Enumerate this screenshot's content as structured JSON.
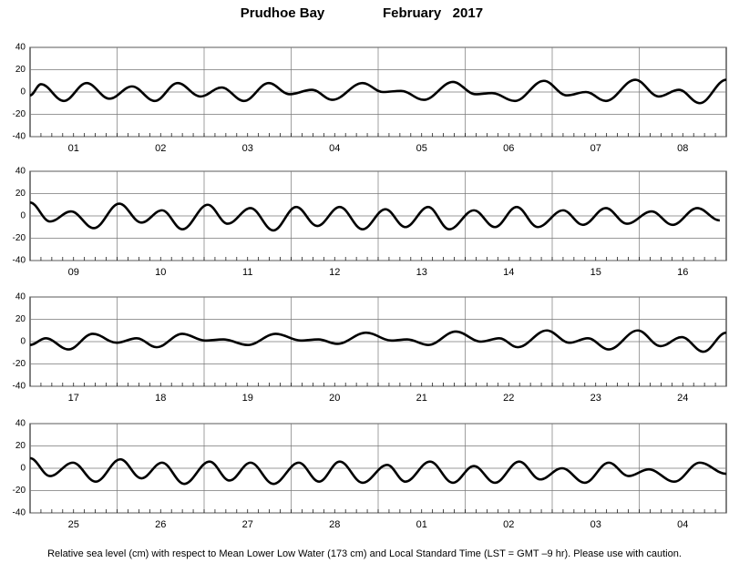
{
  "header": {
    "station": "Prudhoe Bay",
    "month_year": "February   2017"
  },
  "footer": "Relative sea level (cm) with respect to Mean Lower Low Water (173 cm) and Local Standard Time (LST = GMT –9 hr). Please use with caution.",
  "chart_data": [
    {
      "type": "line",
      "categories": [
        "01",
        "02",
        "03",
        "04",
        "05",
        "06",
        "07",
        "08"
      ],
      "xlim": [
        0,
        192
      ],
      "ylim": [
        -40,
        40
      ],
      "yticks": [
        -40,
        -20,
        0,
        20,
        40
      ],
      "grid": true,
      "color": "#000000",
      "x": [
        0,
        3,
        9.3,
        15.6,
        21.9,
        28.1,
        34.4,
        40.7,
        47,
        52.8,
        59,
        65.8,
        71.6,
        77.7,
        83.4,
        91.7,
        97.3,
        102.3,
        108.6,
        116.6,
        122.9,
        127.4,
        133.7,
        141.7,
        148,
        153.3,
        158.8,
        166.9,
        173.4,
        178.9,
        184.7,
        192
      ],
      "values": [
        -3,
        7,
        -8,
        8,
        -6,
        5,
        -8,
        8,
        -4,
        4,
        -8,
        8,
        -2,
        2,
        -7,
        8,
        0,
        1,
        -7,
        9,
        -2,
        -1,
        -8,
        10,
        -3,
        0,
        -8,
        11,
        -4,
        2,
        -10,
        11
      ]
    },
    {
      "type": "line",
      "categories": [
        "09",
        "10",
        "11",
        "12",
        "13",
        "14",
        "15",
        "16"
      ],
      "xlim": [
        0,
        192
      ],
      "ylim": [
        -40,
        40
      ],
      "yticks": [
        -40,
        -20,
        0,
        20,
        40
      ],
      "grid": true,
      "color": "#000000",
      "x": [
        0,
        5.5,
        11.3,
        17.6,
        24.6,
        30.7,
        36.4,
        42,
        49,
        54.5,
        60.8,
        67.1,
        73.4,
        79.2,
        85.4,
        91.7,
        98,
        103.5,
        109.8,
        115.6,
        122.4,
        128.2,
        134.2,
        140,
        147,
        152.5,
        158.8,
        164.6,
        171.4,
        177.2,
        184,
        190.2
      ],
      "values": [
        12,
        -5,
        4,
        -11,
        11,
        -6,
        5,
        -12,
        10,
        -7,
        7,
        -13,
        8,
        -9,
        8,
        -12,
        6,
        -10,
        8,
        -12,
        5,
        -10,
        8,
        -10,
        5,
        -8,
        7,
        -7,
        4,
        -8,
        7,
        -4
      ]
    },
    {
      "type": "line",
      "categories": [
        "17",
        "18",
        "19",
        "20",
        "21",
        "22",
        "23",
        "24"
      ],
      "xlim": [
        0,
        192
      ],
      "ylim": [
        -40,
        40
      ],
      "yticks": [
        -40,
        -20,
        0,
        20,
        40
      ],
      "grid": true,
      "color": "#000000",
      "x": [
        0,
        4.3,
        10.6,
        17.3,
        23.9,
        29.4,
        34.9,
        42,
        48.2,
        53.3,
        60,
        67.8,
        74.6,
        79.5,
        84.7,
        92.7,
        99.7,
        104,
        109.8,
        117.4,
        124.4,
        129.4,
        134.5,
        142.5,
        148.8,
        153.8,
        159.6,
        167.6,
        173.9,
        179.7,
        185.7,
        192
      ],
      "values": [
        -3,
        3,
        -7,
        7,
        -1,
        3,
        -5,
        7,
        1,
        2,
        -3,
        7,
        1,
        2,
        -2,
        8,
        1,
        2,
        -3,
        9,
        0,
        3,
        -5,
        10,
        -1,
        3,
        -7,
        10,
        -4,
        4,
        -9,
        8
      ]
    },
    {
      "type": "line",
      "categories": [
        "25",
        "26",
        "27",
        "28",
        "01",
        "02",
        "03",
        "04"
      ],
      "xlim": [
        0,
        192
      ],
      "ylim": [
        -40,
        40
      ],
      "yticks": [
        -40,
        -20,
        0,
        20,
        40
      ],
      "grid": true,
      "color": "#000000",
      "x": [
        0,
        5.5,
        11.8,
        18.1,
        24.9,
        30.7,
        36.4,
        42.5,
        49.5,
        55,
        60.8,
        67.1,
        74.1,
        79.7,
        85.4,
        91.7,
        98.5,
        103.5,
        110.3,
        116.6,
        122.4,
        128.2,
        134.9,
        140.7,
        146.7,
        153,
        159.6,
        165.1,
        170.6,
        177.7,
        184.7,
        192
      ],
      "values": [
        9,
        -7,
        5,
        -12,
        8,
        -9,
        5,
        -14,
        6,
        -11,
        5,
        -14,
        5,
        -12,
        6,
        -13,
        3,
        -12,
        6,
        -13,
        2,
        -13,
        6,
        -10,
        0,
        -13,
        5,
        -7,
        -1,
        -12,
        5,
        -5
      ]
    }
  ]
}
